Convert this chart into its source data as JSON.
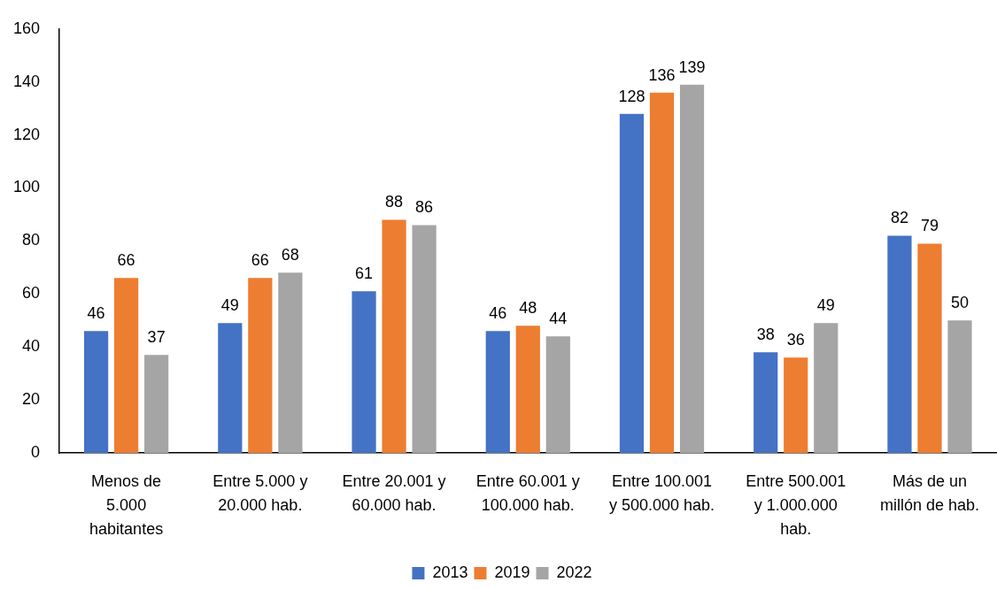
{
  "chart_data": {
    "type": "bar",
    "categories": [
      "Menos de 5.000 habitantes",
      "Entre 5.000 y 20.000 hab.",
      "Entre 20.001 y 60.000 hab.",
      "Entre 60.001 y 100.000 hab.",
      "Entre 100.001 y 500.000 hab.",
      "Entre 500.001 y 1.000.000 hab.",
      "Más de un millón de hab."
    ],
    "series": [
      {
        "name": "2013",
        "color": "#4472c4",
        "values": [
          46,
          49,
          61,
          46,
          128,
          38,
          82
        ]
      },
      {
        "name": "2019",
        "color": "#ed7d31",
        "values": [
          66,
          66,
          88,
          48,
          136,
          36,
          79
        ]
      },
      {
        "name": "2022",
        "color": "#a5a5a5",
        "values": [
          37,
          68,
          86,
          44,
          139,
          49,
          50
        ]
      }
    ],
    "ylim": [
      0,
      160
    ],
    "yticks": [
      0,
      20,
      40,
      60,
      80,
      100,
      120,
      140,
      160
    ],
    "grid": false,
    "legend": "bottom",
    "data_labels": true
  }
}
